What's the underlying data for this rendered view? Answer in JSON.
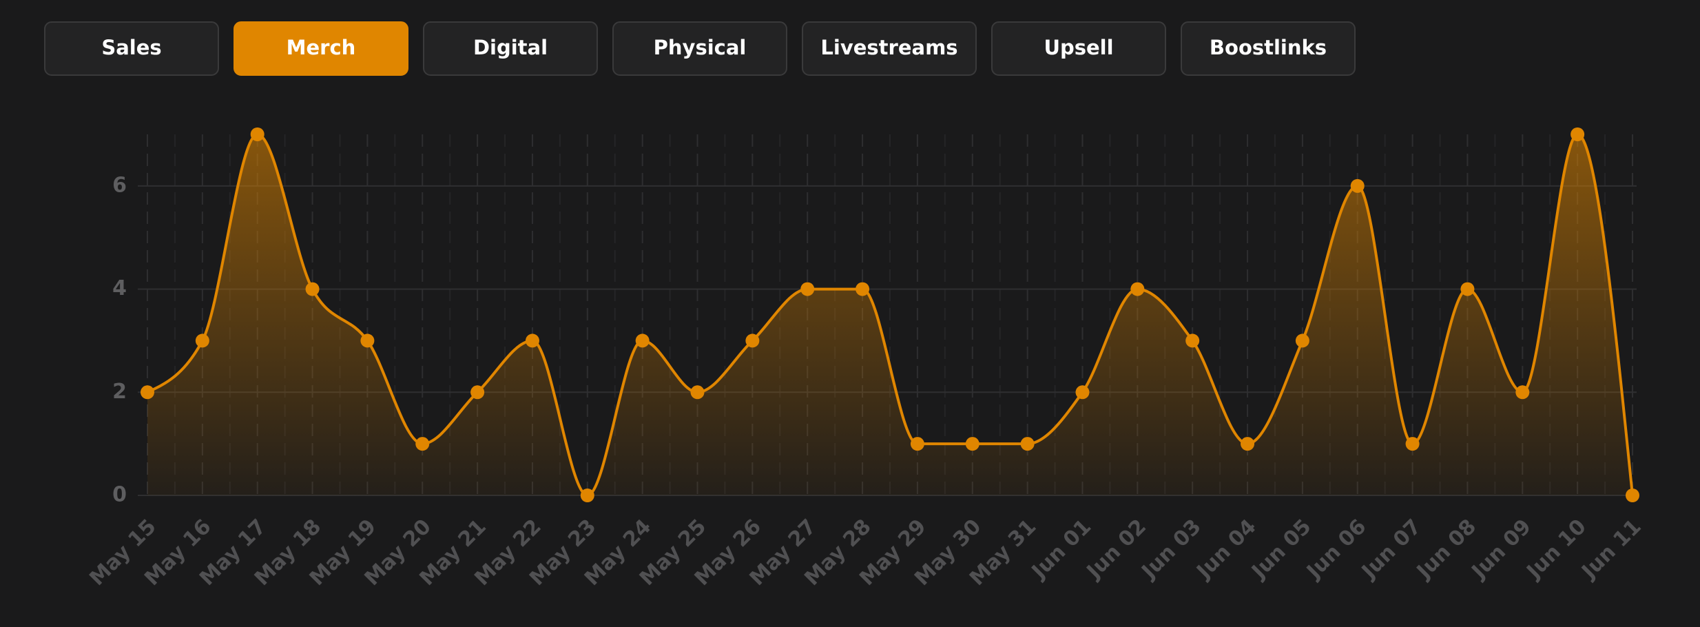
{
  "tabs": [
    "Sales",
    "Merch",
    "Digital",
    "Physical",
    "Livestreams",
    "Upsell",
    "Boostlinks"
  ],
  "active_tab": 1,
  "chart_data": {
    "type": "area",
    "categories": [
      "May 15",
      "May 16",
      "May 17",
      "May 18",
      "May 19",
      "May 20",
      "May 21",
      "May 22",
      "May 23",
      "May 24",
      "May 25",
      "May 26",
      "May 27",
      "May 28",
      "May 29",
      "May 30",
      "May 31",
      "Jun 01",
      "Jun 02",
      "Jun 03",
      "Jun 04",
      "Jun 05",
      "Jun 06",
      "Jun 07",
      "Jun 08",
      "Jun 09",
      "Jun 10",
      "Jun 11"
    ],
    "series": [
      {
        "color": "#e08600",
        "values": [
          2,
          3,
          7,
          4,
          3,
          1,
          2,
          3,
          0,
          3,
          2,
          3,
          4,
          4,
          1,
          1,
          1,
          2,
          4,
          3,
          1,
          3,
          6,
          1,
          4,
          2,
          7,
          0
        ]
      }
    ],
    "ylim": [
      0,
      7
    ],
    "yticks": [
      0,
      2,
      4,
      6
    ],
    "grid": true
  }
}
